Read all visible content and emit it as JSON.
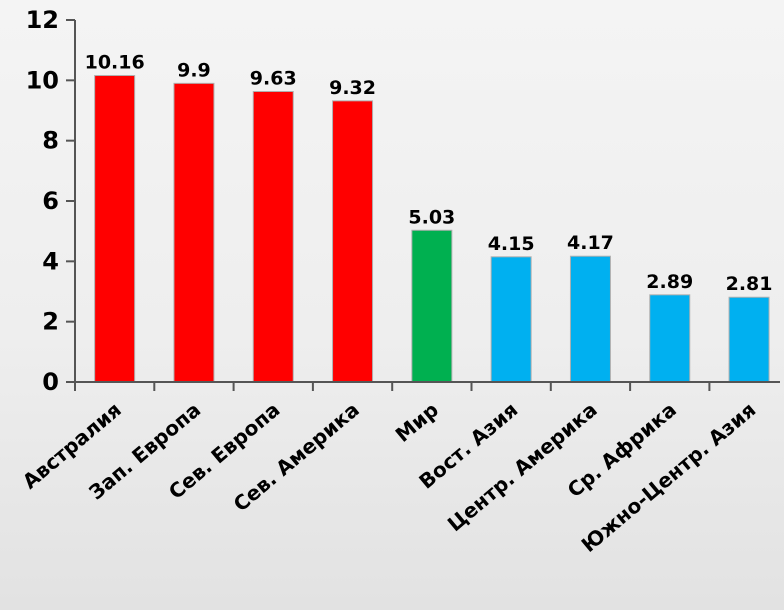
{
  "chart_data": {
    "type": "bar",
    "categories": [
      "Австралия",
      "Зап. Европа",
      "Сев. Европа",
      "Сев. Америка",
      "Мир",
      "Вост. Азия",
      "Центр. Америка",
      "Ср. Африка",
      "Южно-Центр. Азия"
    ],
    "values": [
      10.16,
      9.9,
      9.63,
      9.32,
      5.03,
      4.15,
      4.17,
      2.89,
      2.81
    ],
    "data_labels": [
      "10.16",
      "9.9",
      "9.63",
      "9.32",
      "5.03",
      "4.15",
      "4.17",
      "2.89",
      "2.81"
    ],
    "bar_colors": [
      "#ff0000",
      "#ff0000",
      "#ff0000",
      "#ff0000",
      "#00b050",
      "#00b0f0",
      "#00b0f0",
      "#00b0f0",
      "#00b0f0"
    ],
    "ylim": [
      0,
      12
    ],
    "yticks": [
      0,
      2,
      4,
      6,
      8,
      10,
      12
    ],
    "title": "",
    "xlabel": "",
    "ylabel": "",
    "grid": false,
    "legend": "none"
  }
}
